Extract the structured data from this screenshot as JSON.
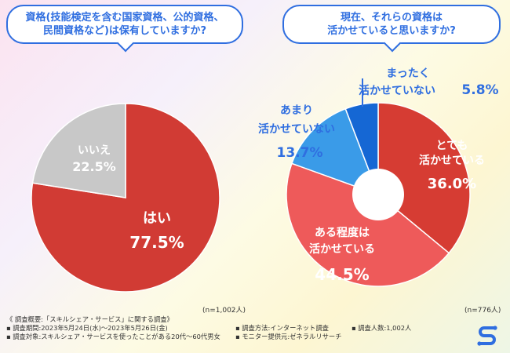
{
  "colors": {
    "accent": "#2f6ee0",
    "pie1_yes": "#d13b34",
    "pie1_no": "#c8c8c8",
    "pie2_very": "#d63c33",
    "pie2_somewhat": "#ee5a5a",
    "pie2_not_much": "#3a9be8",
    "pie2_not_at_all": "#1567d4"
  },
  "left": {
    "question": "資格(技能検定を含む国家資格、公的資格、\n民間資格など)は保有していますか?",
    "n_note": "(n=1,002人)"
  },
  "right": {
    "question": "現在、それらの資格は\n活かせていると思いますか?",
    "n_note": "(n=776人)"
  },
  "chart_data": [
    {
      "type": "pie",
      "categories": [
        "はい",
        "いいえ"
      ],
      "values": [
        77.5,
        22.5
      ],
      "value_labels": [
        "77.5%",
        "22.5%"
      ]
    },
    {
      "type": "pie",
      "categories": [
        "とても活かせている",
        "ある程度は活かせている",
        "あまり活かせていない",
        "まったく活かせていない"
      ],
      "label_lines": [
        [
          "とても",
          "活かせている"
        ],
        [
          "ある程度は",
          "活かせている"
        ],
        [
          "あまり",
          "活かせていない"
        ],
        [
          "まったく",
          "活かせていない"
        ]
      ],
      "values": [
        36.0,
        44.5,
        13.7,
        5.8
      ],
      "value_labels": [
        "36.0%",
        "44.5%",
        "13.7%",
        "5.8%"
      ]
    }
  ],
  "footer": {
    "overview": "《 調査概要:「スキルシェア・サービス」に関する調査》",
    "period": "▪ 調査期間:2023年5月24日(水)〜2023年5月26日(金)",
    "method": "▪ 調査方法:インターネット調査",
    "people": "▪ 調査人数:1,002人",
    "target": "▪ 調査対象:スキルシェア・サービスを使ったことがある20代〜60代男女",
    "provider": "▪ モニター提供元:ゼネラルリサーチ"
  }
}
